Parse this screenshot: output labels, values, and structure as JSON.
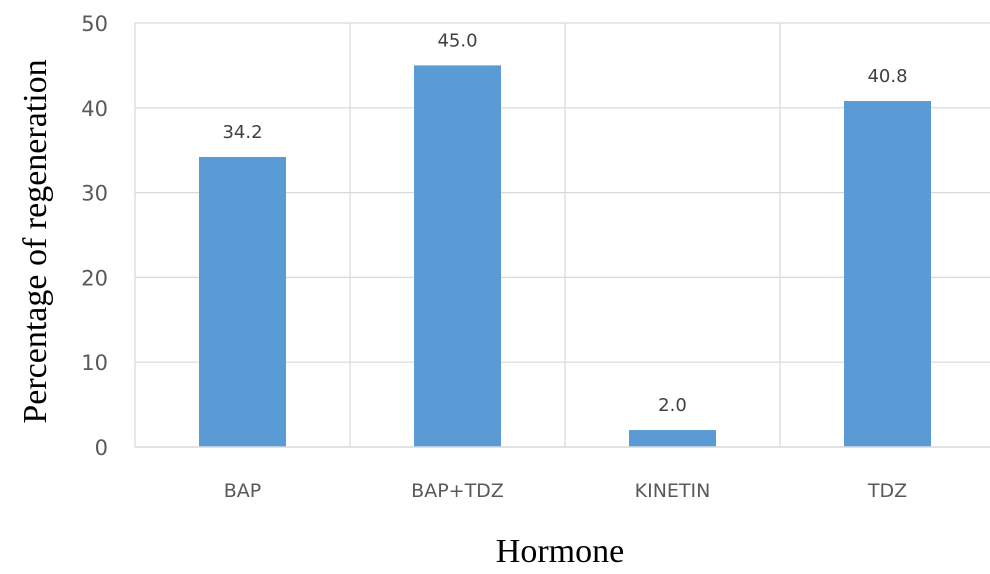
{
  "chart_data": {
    "type": "bar",
    "categories": [
      "BAP",
      "BAP+TDZ",
      "KINETIN",
      "TDZ"
    ],
    "values": [
      34.2,
      45.0,
      2.0,
      40.8
    ],
    "data_labels": [
      "34.2",
      "45.0",
      "2.0",
      "40.8"
    ],
    "title": "",
    "xlabel": "Hormone",
    "ylabel": "Percentage of regeneration",
    "ylim": [
      0,
      50
    ],
    "yticks": [
      0,
      10,
      20,
      30,
      40,
      50
    ],
    "grid": "horizontal and vertical",
    "legend": "none",
    "bar_color": "#5B9BD5",
    "grid_color": "#D9D9D9"
  }
}
